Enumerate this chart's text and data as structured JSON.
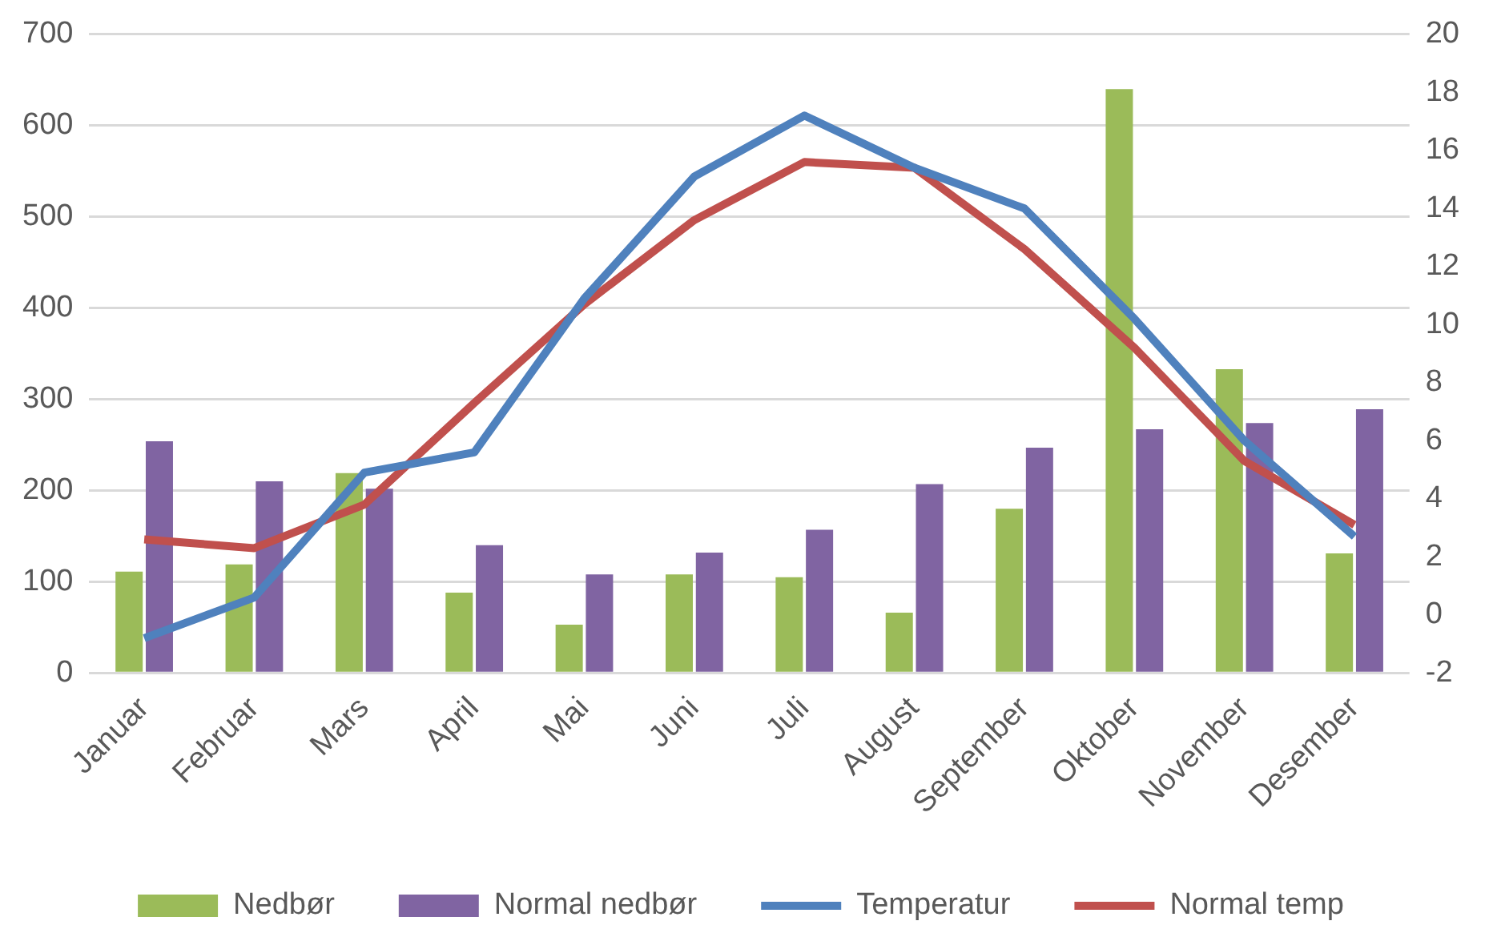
{
  "chart_data": {
    "type": "bar",
    "categories": [
      "Januar",
      "Februar",
      "Mars",
      "April",
      "Mai",
      "Juni",
      "Juli",
      "August",
      "September",
      "Oktober",
      "November",
      "Desember"
    ],
    "series": [
      {
        "name": "Nedbør",
        "color": "#9bbb59",
        "values": [
          111,
          119,
          219,
          88,
          53,
          108,
          105,
          66,
          180,
          640,
          333,
          131
        ]
      },
      {
        "name": "Normal nedbør",
        "color": "#8064a2",
        "values": [
          254,
          210,
          202,
          140,
          108,
          132,
          157,
          207,
          247,
          267,
          274,
          289
        ]
      },
      {
        "name": "Temperatur",
        "type": "line",
        "axis": "y2",
        "color": "#4f81bd",
        "values": [
          -0.8,
          0.6,
          4.9,
          5.6,
          10.9,
          15.1,
          17.2,
          15.4,
          14.0,
          10.2,
          6.0,
          2.7
        ]
      },
      {
        "name": "Normal temp",
        "type": "line",
        "axis": "y2",
        "color": "#c0504d",
        "values": [
          2.6,
          2.3,
          3.8,
          7.3,
          10.7,
          13.6,
          15.6,
          15.4,
          12.6,
          9.2,
          5.3,
          3.1
        ]
      }
    ],
    "ylim": [
      0,
      700
    ],
    "yticks": [
      0,
      100,
      200,
      300,
      400,
      500,
      600,
      700
    ],
    "y2lim": [
      -2,
      20
    ],
    "y2ticks": [
      -2,
      0,
      2,
      4,
      6,
      8,
      10,
      12,
      14,
      16,
      18,
      20
    ],
    "grid": "y",
    "legend": "bottom",
    "marker": "none",
    "line_style": "solid"
  }
}
